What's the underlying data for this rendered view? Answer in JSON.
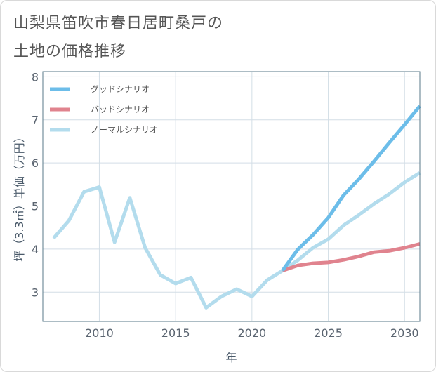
{
  "title_line1": "山梨県笛吹市春日居町桑戸の",
  "title_line2": "土地の価格推移",
  "chart_data": {
    "type": "line",
    "xlabel": "年",
    "ylabel": "坪（3.3㎡）単価（万円）",
    "xlim": [
      2006.3,
      2031
    ],
    "ylim": [
      2.32,
      8.12
    ],
    "x_ticks": [
      2010,
      2015,
      2020,
      2025,
      2030
    ],
    "y_ticks": [
      3,
      4,
      5,
      6,
      7,
      8
    ],
    "x_tick_labels": [
      "2010",
      "2015",
      "2020",
      "2025",
      "2030"
    ],
    "y_tick_labels": [
      "3",
      "4",
      "5",
      "6",
      "7",
      "8"
    ],
    "legend_position": "top-left",
    "series": [
      {
        "name": "グッドシナリオ",
        "color": "#6cbde9",
        "x": [
          2022,
          2023,
          2024,
          2025,
          2026,
          2027,
          2028,
          2029,
          2030,
          2031
        ],
        "values": [
          3.5,
          3.99,
          4.33,
          4.73,
          5.25,
          5.62,
          6.04,
          6.47,
          6.89,
          7.32
        ]
      },
      {
        "name": "バッドシナリオ",
        "color": "#e0838e",
        "x": [
          2022,
          2023,
          2024,
          2025,
          2026,
          2027,
          2028,
          2029,
          2030,
          2031
        ],
        "values": [
          3.5,
          3.62,
          3.67,
          3.69,
          3.75,
          3.83,
          3.93,
          3.96,
          4.03,
          4.12
        ]
      },
      {
        "name": "ノーマルシナリオ",
        "color": "#b3dced",
        "x": [
          2007,
          2008,
          2009,
          2010,
          2011,
          2012,
          2013,
          2014,
          2015,
          2016,
          2017,
          2018,
          2019,
          2020,
          2021,
          2022,
          2023,
          2024,
          2025,
          2026,
          2027,
          2028,
          2029,
          2030,
          2031
        ],
        "values": [
          4.25,
          4.66,
          5.33,
          5.44,
          4.16,
          5.19,
          4.03,
          3.4,
          3.2,
          3.34,
          2.64,
          2.9,
          3.07,
          2.9,
          3.28,
          3.5,
          3.74,
          4.03,
          4.23,
          4.55,
          4.79,
          5.05,
          5.28,
          5.55,
          5.77
        ]
      }
    ]
  }
}
